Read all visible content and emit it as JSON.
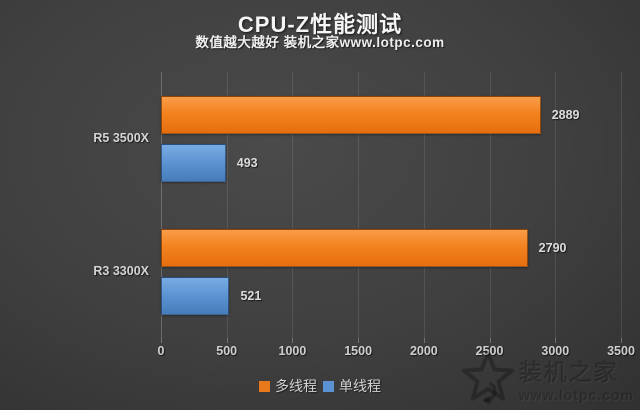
{
  "header": {
    "title": "CPU-Z性能测试",
    "subtitle": "数值越大越好 装机之家www.lotpc.com"
  },
  "chart_data": {
    "type": "bar",
    "orientation": "horizontal",
    "title": "CPU-Z性能测试",
    "subtitle": "数值越大越好 装机之家www.lotpc.com",
    "categories": [
      "R5 3500X",
      "R3 3300X"
    ],
    "series": [
      {
        "name": "多线程",
        "color": "#ED7D31",
        "values": [
          2889,
          2790
        ]
      },
      {
        "name": "单线程",
        "color": "#5B9BD5",
        "values": [
          493,
          521
        ]
      }
    ],
    "xlim": [
      0,
      3500
    ],
    "xticks": [
      "0",
      "500",
      "1000",
      "1500",
      "2000",
      "2500",
      "3000",
      "3500"
    ],
    "grid": true,
    "legend_position": "bottom",
    "value_labels": true
  },
  "legend": {
    "items": [
      {
        "label": "多线程",
        "color": "#e8781c"
      },
      {
        "label": "单线程",
        "color": "#5b93d2"
      }
    ]
  },
  "watermark": {
    "icon": "star-icon",
    "line1": "装机之家",
    "line2": "www.lotpc.com"
  },
  "colors": {
    "background_center": "#4a4a4a",
    "background_edge": "#2b2b2b",
    "orange_top": "#f99d49",
    "orange_bottom": "#e66e0e",
    "blue_top": "#79abe2",
    "blue_bottom": "#467cba",
    "text": "#d4d4d4"
  }
}
